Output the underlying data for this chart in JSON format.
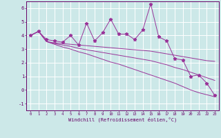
{
  "xlabel": "Windchill (Refroidissement éolien,°C)",
  "background_color": "#cce8e8",
  "line_color": "#993399",
  "grid_color": "#ffffff",
  "ylim": [
    -1.5,
    6.5
  ],
  "xlim": [
    -0.5,
    23.5
  ],
  "x": [
    0,
    1,
    2,
    3,
    4,
    5,
    6,
    7,
    8,
    9,
    10,
    11,
    12,
    13,
    14,
    15,
    16,
    17,
    18,
    19,
    20,
    21,
    22,
    23
  ],
  "y_main": [
    4.0,
    4.3,
    3.7,
    3.6,
    3.5,
    4.0,
    3.3,
    4.9,
    3.6,
    4.2,
    5.2,
    4.1,
    4.1,
    3.7,
    4.4,
    6.3,
    3.9,
    3.6,
    2.3,
    2.2,
    1.0,
    1.1,
    0.5,
    -0.4
  ],
  "y_trend1": [
    4.0,
    4.3,
    3.55,
    3.45,
    3.4,
    3.35,
    3.3,
    3.25,
    3.2,
    3.15,
    3.1,
    3.05,
    3.0,
    2.95,
    2.9,
    2.85,
    2.75,
    2.65,
    2.55,
    2.45,
    2.35,
    2.25,
    2.15,
    2.1
  ],
  "y_trend2": [
    4.0,
    4.3,
    3.55,
    3.4,
    3.3,
    3.2,
    3.05,
    2.95,
    2.85,
    2.75,
    2.65,
    2.55,
    2.45,
    2.35,
    2.25,
    2.15,
    2.0,
    1.85,
    1.65,
    1.5,
    1.3,
    1.1,
    0.9,
    0.7
  ],
  "y_trend3": [
    4.0,
    4.3,
    3.55,
    3.35,
    3.15,
    3.0,
    2.8,
    2.65,
    2.45,
    2.25,
    2.05,
    1.9,
    1.7,
    1.5,
    1.3,
    1.1,
    0.9,
    0.7,
    0.5,
    0.25,
    0.0,
    -0.2,
    -0.35,
    -0.5
  ],
  "yticks": [
    -1,
    0,
    1,
    2,
    3,
    4,
    5,
    6
  ],
  "xticks": [
    0,
    1,
    2,
    3,
    4,
    5,
    6,
    7,
    8,
    9,
    10,
    11,
    12,
    13,
    14,
    15,
    16,
    17,
    18,
    19,
    20,
    21,
    22,
    23
  ]
}
